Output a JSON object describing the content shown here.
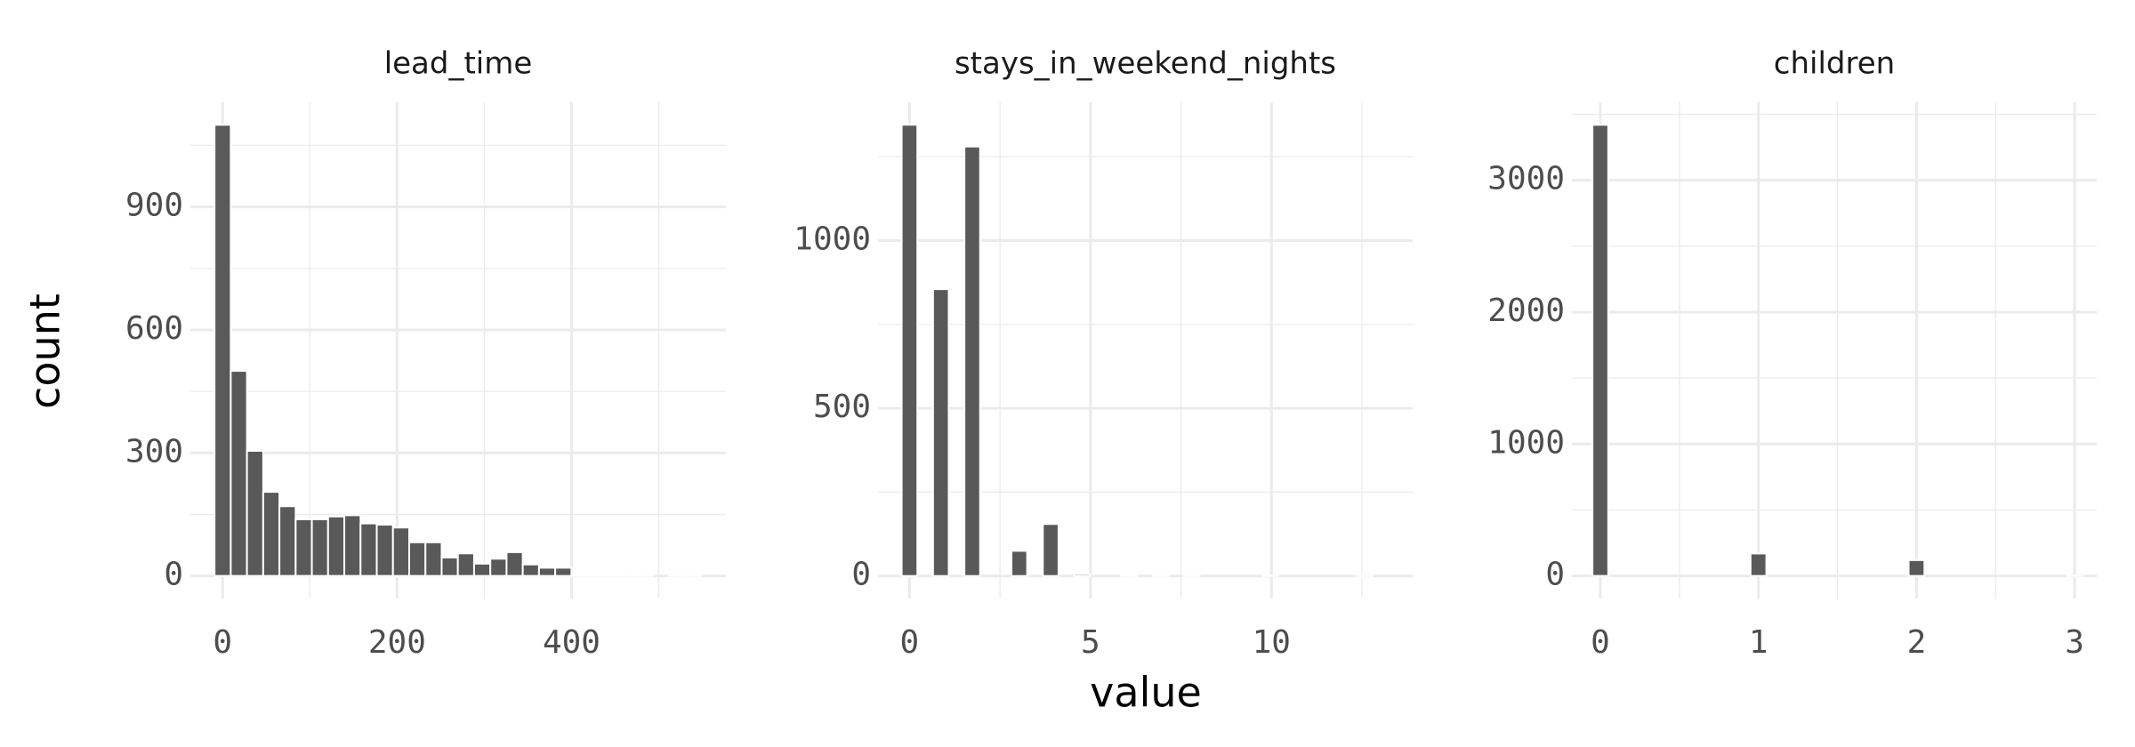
{
  "x_label": "value",
  "y_label": "count",
  "chart_data": [
    {
      "type": "histogram",
      "title": "lead_time",
      "color": "#595959",
      "bins": [
        -9.3,
        9.3,
        27.9,
        46.5,
        65.1,
        83.7,
        102.3,
        120.9,
        139.5,
        158.1,
        176.7,
        195.3,
        213.9,
        232.5,
        251.1,
        269.7,
        288.3,
        306.9,
        325.5,
        344.1,
        362.7,
        381.3,
        399.9,
        418.5,
        437.1,
        455.7,
        474.3,
        492.9,
        511.5,
        530.1,
        548.7
      ],
      "values": [
        1100,
        500,
        305,
        205,
        170,
        138,
        138,
        145,
        148,
        128,
        125,
        118,
        82,
        82,
        45,
        55,
        30,
        42,
        58,
        28,
        20,
        20,
        3,
        2,
        2,
        1,
        1,
        0,
        1,
        1
      ],
      "xlim": [
        -37,
        577
      ],
      "ylim": [
        -55,
        1155
      ],
      "xticks": [
        0,
        200,
        400
      ],
      "yticks": [
        0,
        300,
        600,
        900
      ],
      "grid": true
    },
    {
      "type": "histogram",
      "title": "stays_in_weekend_nights",
      "color": "#595959",
      "bins": [
        -0.2167,
        0.2167,
        0.65,
        1.0833,
        1.5167,
        1.95,
        2.3833,
        2.8167,
        3.25,
        3.6833,
        4.1167,
        4.55,
        4.9833,
        5.4167,
        5.85,
        6.2833,
        6.7167,
        7.15,
        7.5833,
        8.0167,
        8.45,
        8.8833,
        9.3167,
        9.75,
        10.1833,
        10.6167,
        11.05,
        11.4833,
        11.9167,
        12.35,
        12.7833
      ],
      "values": [
        1345,
        0,
        855,
        0,
        1280,
        0,
        0,
        75,
        0,
        155,
        0,
        6,
        0,
        0,
        2,
        0,
        1,
        0,
        1,
        0,
        0,
        0,
        0,
        1,
        0,
        0,
        0,
        0,
        0,
        1
      ],
      "xlim": [
        -0.87,
        13.9
      ],
      "ylim": [
        -67,
        1412
      ],
      "xticks": [
        0,
        5,
        10
      ],
      "yticks": [
        0,
        500,
        1000
      ],
      "grid": true
    },
    {
      "type": "histogram",
      "title": "children",
      "color": "#595959",
      "bins": [
        -0.05,
        0.05,
        0.15,
        0.25,
        0.35,
        0.45,
        0.55,
        0.65,
        0.75,
        0.85,
        0.95,
        1.05,
        1.15,
        1.25,
        1.35,
        1.45,
        1.55,
        1.65,
        1.75,
        1.85,
        1.95,
        2.05,
        2.15,
        2.25,
        2.35,
        2.45,
        2.55,
        2.65,
        2.75,
        2.85,
        2.95,
        3.05
      ],
      "values": [
        3420,
        0,
        0,
        0,
        0,
        0,
        0,
        0,
        0,
        0,
        170,
        0,
        0,
        0,
        0,
        0,
        0,
        0,
        0,
        0,
        120,
        0,
        0,
        0,
        0,
        0,
        0,
        0,
        0,
        0,
        1
      ],
      "xlim": [
        -0.18,
        3.14
      ],
      "ylim": [
        -171,
        3591
      ],
      "xticks": [
        0,
        1,
        2,
        3
      ],
      "yticks": [
        0,
        1000,
        2000,
        3000
      ],
      "grid": true
    }
  ]
}
